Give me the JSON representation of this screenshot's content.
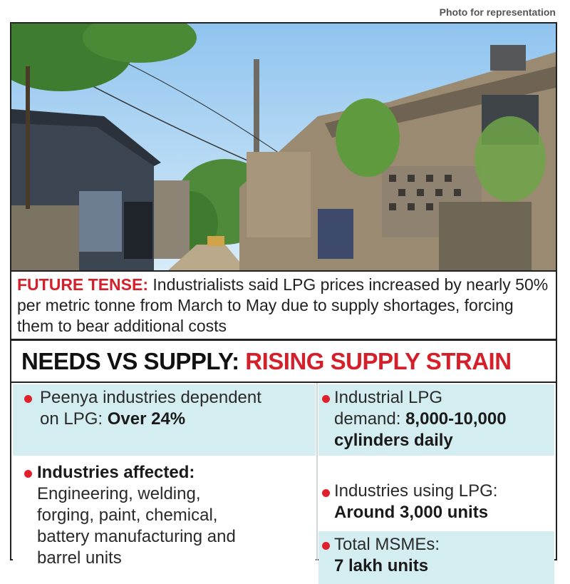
{
  "photo_credit": "Photo for representation",
  "caption": {
    "lead": "FUTURE TENSE:",
    "text": " Industrialists said LPG prices increased by nearly 50% per metric tonne from March to May due to supply shortages, forcing them to bear additional costs"
  },
  "headline": {
    "part1": "NEEDS VS SUPPLY: ",
    "part2": "RISING SUPPLY STRAIN"
  },
  "facts_left": [
    {
      "line1": "Peenya industries dependent",
      "line2_prefix": "on LPG: ",
      "line2_bold": "Over 24%"
    },
    {
      "title": "Industries affected:",
      "lines": [
        "Engineering, welding,",
        "forging, paint, chemical,",
        "battery manufacturing and",
        "barrel units"
      ]
    }
  ],
  "facts_right": [
    {
      "line1": "Industrial LPG",
      "line2_prefix": "demand: ",
      "line2_bold": "8,000-10,000",
      "line3_bold": "cylinders daily"
    },
    {
      "line1": "Industries using LPG:",
      "line2_bold": "Around 3,000 units"
    },
    {
      "line1": "Total MSMEs:",
      "line2_bold": "7 lakh units"
    }
  ],
  "colors": {
    "accent_red": "#d4202a",
    "teal_box": "#d3edf1"
  }
}
